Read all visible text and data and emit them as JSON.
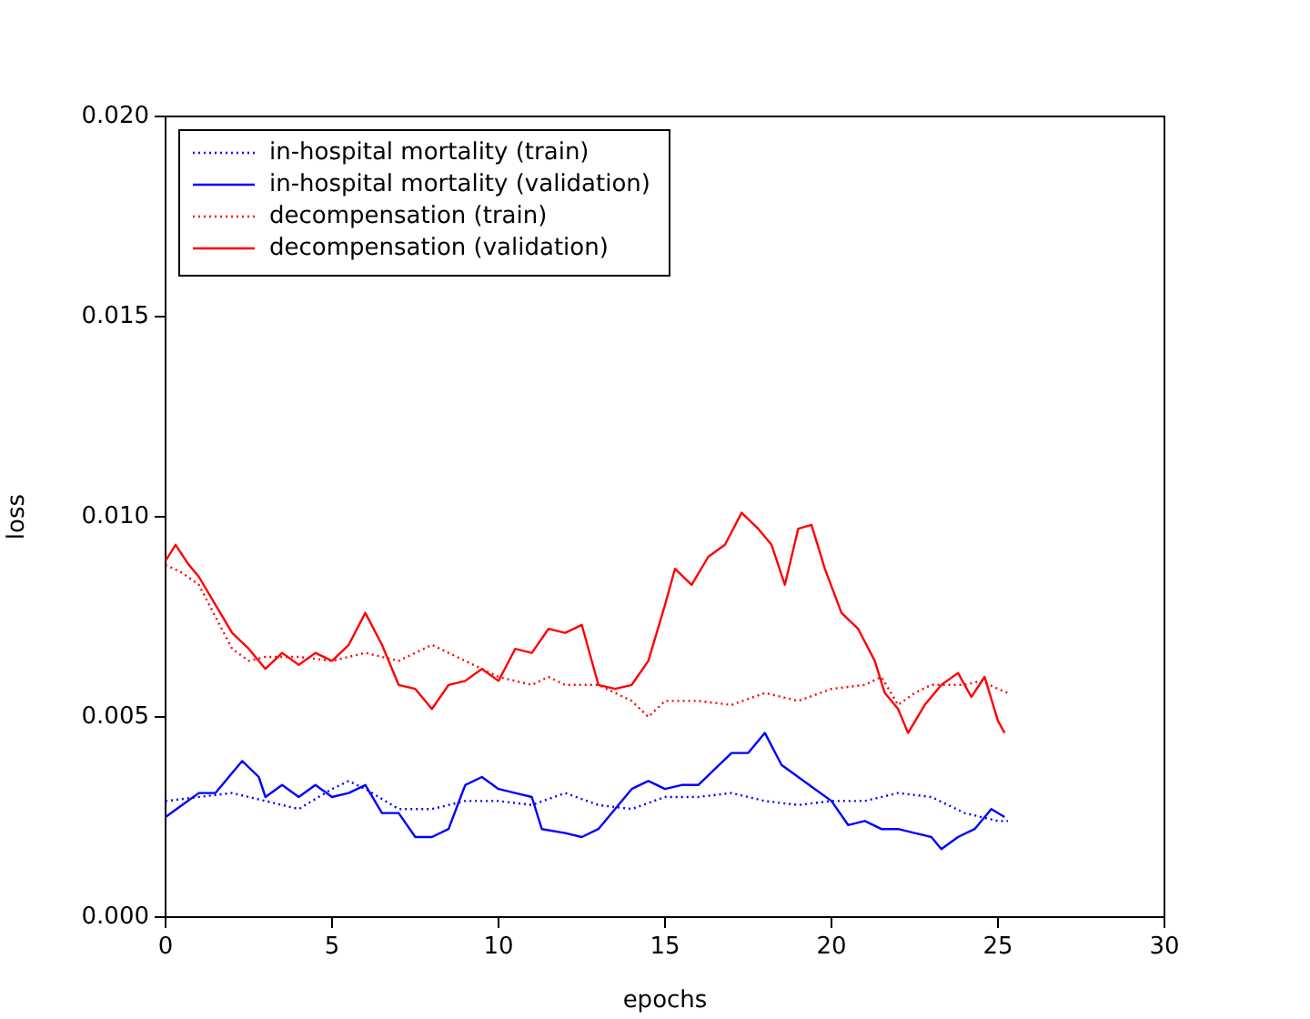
{
  "chart_data": {
    "type": "line",
    "xlabel": "epochs",
    "ylabel": "loss",
    "xlim": [
      0,
      30
    ],
    "xticks": [
      0,
      5,
      10,
      15,
      20,
      25,
      30
    ],
    "ylim": [
      0,
      0.02
    ],
    "yticks": [
      {
        "value": 0,
        "label": "0.000"
      },
      {
        "value": 0.005,
        "label": "0.005"
      },
      {
        "value": 0.01,
        "label": "0.010"
      },
      {
        "value": 0.015,
        "label": "0.015"
      },
      {
        "value": 0.02,
        "label": "0.020"
      }
    ],
    "grid": false,
    "legend": "top left",
    "marker": "none",
    "series": [
      {
        "name": "in-hospital mortality (train)",
        "color": "#0000ff",
        "line_style": "dotted",
        "x": [
          0,
          1,
          2,
          3,
          4,
          5,
          5.5,
          6,
          7,
          8,
          9,
          10,
          11,
          12,
          13,
          14,
          15,
          16,
          17,
          18,
          19,
          20,
          21,
          22,
          23,
          24,
          25,
          25.3
        ],
        "values": [
          0.0029,
          0.003,
          0.0031,
          0.0029,
          0.0027,
          0.0032,
          0.0034,
          0.0032,
          0.0027,
          0.0027,
          0.0029,
          0.0029,
          0.0028,
          0.0031,
          0.0028,
          0.0027,
          0.003,
          0.003,
          0.0031,
          0.0029,
          0.0028,
          0.0029,
          0.0029,
          0.0031,
          0.003,
          0.0026,
          0.0024,
          0.0024
        ]
      },
      {
        "name": "in-hospital mortality (validation)",
        "color": "#0000ff",
        "line_style": "solid",
        "x": [
          0,
          0.5,
          1,
          1.5,
          2,
          2.3,
          2.8,
          3,
          3.5,
          4,
          4.5,
          5,
          5.5,
          6,
          6.5,
          7,
          7.5,
          8,
          8.5,
          9,
          9.5,
          10,
          10.5,
          11,
          11.3,
          12,
          12.5,
          13,
          13.5,
          14,
          14.5,
          15,
          15.5,
          16,
          16.5,
          17,
          17.5,
          18,
          18.5,
          19,
          19.5,
          20,
          20.5,
          21,
          21.5,
          22,
          22.5,
          23,
          23.3,
          23.8,
          24.3,
          24.8,
          25.2
        ],
        "values": [
          0.0025,
          0.0028,
          0.0031,
          0.0031,
          0.0036,
          0.0039,
          0.0035,
          0.003,
          0.0033,
          0.003,
          0.0033,
          0.003,
          0.0031,
          0.0033,
          0.0026,
          0.0026,
          0.002,
          0.002,
          0.0022,
          0.0033,
          0.0035,
          0.0032,
          0.0031,
          0.003,
          0.0022,
          0.0021,
          0.002,
          0.0022,
          0.0027,
          0.0032,
          0.0034,
          0.0032,
          0.0033,
          0.0033,
          0.0037,
          0.0041,
          0.0041,
          0.0046,
          0.0038,
          0.0035,
          0.0032,
          0.0029,
          0.0023,
          0.0024,
          0.0022,
          0.0022,
          0.0021,
          0.002,
          0.0017,
          0.002,
          0.0022,
          0.0027,
          0.0025
        ]
      },
      {
        "name": "decompensation (train)",
        "color": "#ff0000",
        "line_style": "dotted",
        "x": [
          0,
          0.5,
          1,
          1.5,
          2,
          2.5,
          3,
          4,
          5,
          6,
          7,
          7.5,
          8,
          8.5,
          9,
          10,
          11,
          11.5,
          12,
          13,
          14,
          14.5,
          15,
          16,
          17,
          18,
          19,
          20,
          21,
          21.5,
          22,
          22.5,
          23,
          24,
          24.5,
          25,
          25.3
        ],
        "values": [
          0.0088,
          0.0086,
          0.0083,
          0.0075,
          0.0067,
          0.0064,
          0.0065,
          0.0065,
          0.0064,
          0.0066,
          0.0064,
          0.0066,
          0.0068,
          0.0066,
          0.0064,
          0.006,
          0.0058,
          0.006,
          0.0058,
          0.0058,
          0.0054,
          0.005,
          0.0054,
          0.0054,
          0.0053,
          0.0056,
          0.0054,
          0.0057,
          0.0058,
          0.006,
          0.0053,
          0.0056,
          0.0058,
          0.0058,
          0.0059,
          0.0057,
          0.0056
        ]
      },
      {
        "name": "decompensation (validation)",
        "color": "#ff0000",
        "line_style": "solid",
        "x": [
          0,
          0.3,
          0.7,
          1,
          1.5,
          2,
          2.5,
          3,
          3.5,
          4,
          4.5,
          5,
          5.5,
          6,
          6.5,
          7,
          7.5,
          8,
          8.5,
          9,
          9.5,
          10,
          10.5,
          11,
          11.5,
          12,
          12.5,
          13,
          13.5,
          14,
          14.5,
          15,
          15.3,
          15.8,
          16.3,
          16.8,
          17.3,
          17.8,
          18.2,
          18.6,
          19,
          19.4,
          19.8,
          20.3,
          20.8,
          21.3,
          21.6,
          22,
          22.3,
          22.8,
          23.3,
          23.8,
          24.2,
          24.6,
          25,
          25.2
        ],
        "values": [
          0.0089,
          0.0093,
          0.0088,
          0.0085,
          0.0078,
          0.0071,
          0.0067,
          0.0062,
          0.0066,
          0.0063,
          0.0066,
          0.0064,
          0.0068,
          0.0076,
          0.0068,
          0.0058,
          0.0057,
          0.0052,
          0.0058,
          0.0059,
          0.0062,
          0.0059,
          0.0067,
          0.0066,
          0.0072,
          0.0071,
          0.0073,
          0.0058,
          0.0057,
          0.0058,
          0.0064,
          0.0078,
          0.0087,
          0.0083,
          0.009,
          0.0093,
          0.0101,
          0.0097,
          0.0093,
          0.0083,
          0.0097,
          0.0098,
          0.0087,
          0.0076,
          0.0072,
          0.0064,
          0.0056,
          0.0052,
          0.0046,
          0.0053,
          0.0058,
          0.0061,
          0.0055,
          0.006,
          0.0049,
          0.0046
        ]
      }
    ]
  }
}
